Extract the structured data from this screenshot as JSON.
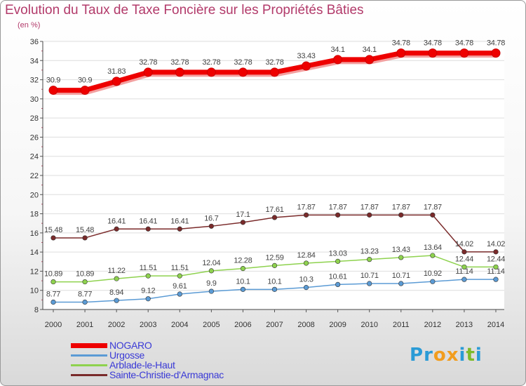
{
  "title": "Evolution du Taux de Taxe Foncière sur les Propriétés Bâties",
  "subtitle": "(en %)",
  "logo": {
    "text": "Proxiti",
    "letters": [
      "P",
      "r",
      "o",
      "x",
      "i",
      "t",
      "i"
    ],
    "colors": [
      "#2a9bd6",
      "#2a9bd6",
      "#f29d1e",
      "#f29d1e",
      "#2a9bd6",
      "#7dbb2a",
      "#2a9bd6"
    ]
  },
  "chart_data": {
    "type": "line",
    "title": "Evolution du Taux de Taxe Foncière sur les Propriétés Bâties",
    "ylabel": "(en %)",
    "xlabel": "",
    "ylim": [
      8,
      36
    ],
    "yticks": [
      8,
      10,
      12,
      14,
      16,
      18,
      20,
      22,
      24,
      26,
      28,
      30,
      32,
      34,
      36
    ],
    "categories": [
      "2000",
      "2001",
      "2002",
      "2003",
      "2004",
      "2005",
      "2006",
      "2007",
      "2008",
      "2009",
      "2010",
      "2011",
      "2012",
      "2013",
      "2014"
    ],
    "series": [
      {
        "name": "NOGARO",
        "color": "#ee0000",
        "thick": true,
        "values": [
          30.9,
          30.9,
          31.83,
          32.78,
          32.78,
          32.78,
          32.78,
          32.78,
          33.43,
          34.1,
          34.1,
          34.78,
          34.78,
          34.78,
          34.78
        ],
        "labels": [
          "30.9",
          "30.9",
          "31.83",
          "32.78",
          "32.78",
          "32.78",
          "32.78",
          "32.78",
          "33.43",
          "34.1",
          "34.1",
          "34.78",
          "34.78",
          "34.78",
          "34.78"
        ]
      },
      {
        "name": "Urgosse",
        "color": "#5b9bd5",
        "thick": false,
        "values": [
          8.77,
          8.77,
          8.94,
          9.12,
          9.61,
          9.9,
          10.1,
          10.1,
          10.3,
          10.61,
          10.71,
          10.71,
          10.92,
          11.14,
          11.14
        ],
        "labels": [
          "8.77",
          "8.77",
          "8.94",
          "9.12",
          "9.61",
          "9.9",
          "10.1",
          "10.1",
          "10.3",
          "10.61",
          "10.71",
          "10.71",
          "10.92",
          "11.14",
          "11.14"
        ]
      },
      {
        "name": "Arblade-le-Haut",
        "color": "#8ed24e",
        "thick": false,
        "values": [
          10.89,
          10.89,
          11.22,
          11.51,
          11.51,
          12.04,
          12.28,
          12.59,
          12.84,
          13.03,
          13.23,
          13.43,
          13.64,
          12.44,
          12.44
        ],
        "labels": [
          "10.89",
          "10.89",
          "11.22",
          "11.51",
          "11.51",
          "12.04",
          "12.28",
          "12.59",
          "12.84",
          "13.03",
          "13.23",
          "13.43",
          "13.64",
          "12.44",
          "12.44"
        ]
      },
      {
        "name": "Sainte-Christie-d'Armagnac",
        "color": "#7a2a2a",
        "thick": false,
        "values": [
          15.48,
          15.48,
          16.41,
          16.41,
          16.41,
          16.7,
          17.1,
          17.61,
          17.87,
          17.87,
          17.87,
          17.87,
          17.87,
          14.02,
          14.02
        ],
        "labels": [
          "15.48",
          "15.48",
          "16.41",
          "16.41",
          "16.41",
          "16.7",
          "17.1",
          "17.61",
          "17.87",
          "17.87",
          "17.87",
          "17.87",
          "17.87",
          "14.02",
          "14.02"
        ]
      }
    ]
  }
}
